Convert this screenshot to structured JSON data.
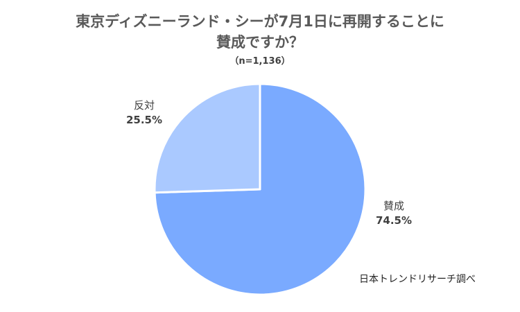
{
  "chart_data": {
    "type": "pie",
    "title_lines": [
      "東京ディズニーランド・シーが7月1日に再開することに",
      "賛成ですか？"
    ],
    "subtitle": "（n=1,136）",
    "slices": [
      {
        "label": "賛成",
        "value": 74.5,
        "value_label": "74.5%",
        "color": "#7aaaff"
      },
      {
        "label": "反対",
        "value": 25.5,
        "value_label": "25.5%",
        "color": "#aac9ff"
      }
    ],
    "start_angle": "12 o'clock",
    "direction": "clockwise"
  },
  "source_note": "日本トレンドリサーチ調べ"
}
